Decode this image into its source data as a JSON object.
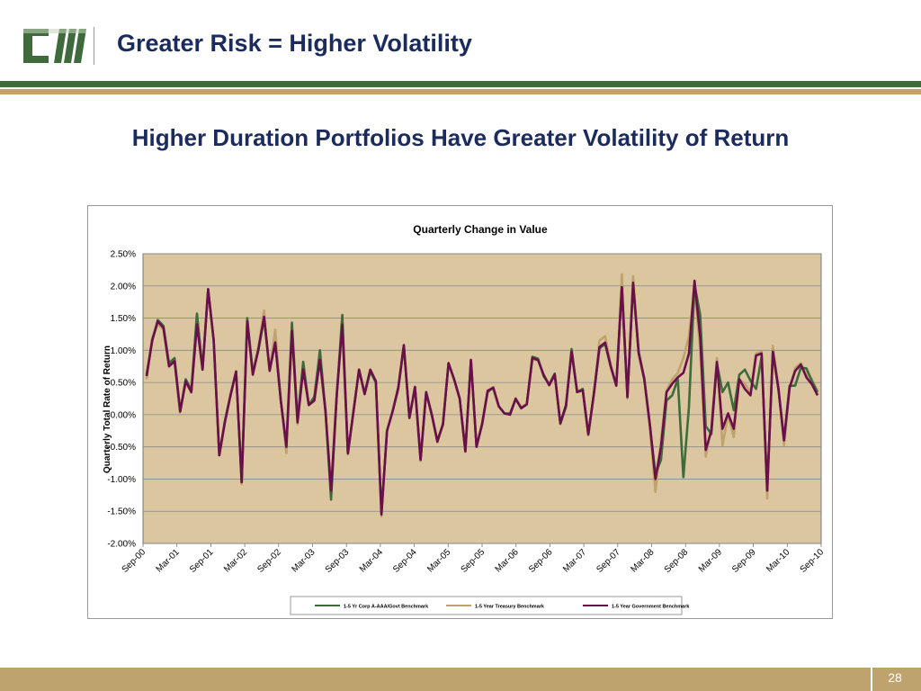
{
  "header": {
    "logo_text": "CM",
    "title": "Greater Risk = Higher Volatility"
  },
  "subtitle": "Higher Duration Portfolios Have Greater Volatility of Return",
  "footer": {
    "page_number": "28"
  },
  "chart_data": {
    "type": "line",
    "title": "Quarterly Change in Value",
    "ylabel": "Quarterly Total Rate of Return",
    "xlabel": "",
    "ylim": [
      -2.0,
      2.5
    ],
    "yticks": [
      "2.50%",
      "2.00%",
      "1.50%",
      "1.00%",
      "0.50%",
      "0.00%",
      "-0.50%",
      "-1.00%",
      "-1.50%",
      "-2.00%"
    ],
    "x_tick_labels": [
      "Sep-00",
      "Mar-01",
      "Sep-01",
      "Mar-02",
      "Sep-02",
      "Mar-03",
      "Sep-03",
      "Mar-04",
      "Sep-04",
      "Mar-05",
      "Sep-05",
      "Mar-06",
      "Sep-06",
      "Mar-07",
      "Sep-07",
      "Mar-08",
      "Sep-08",
      "Mar-09",
      "Sep-09",
      "Mar-10",
      "Sep-10"
    ],
    "grid": true,
    "legend_position": "bottom",
    "plot_background": "#dcc6a0",
    "series": [
      {
        "name": "1-5 Yr Corp A-AAA/Govt Benchmark",
        "color": "#3d6b3a",
        "values": [
          0.62,
          1.15,
          1.47,
          1.38,
          0.8,
          0.88,
          0.05,
          0.55,
          0.38,
          1.57,
          0.7,
          1.95,
          1.15,
          -0.63,
          -0.1,
          0.3,
          0.67,
          -1.05,
          1.5,
          0.64,
          1.0,
          1.49,
          0.7,
          1.12,
          0.22,
          -0.48,
          1.43,
          -0.09,
          0.82,
          0.15,
          0.28,
          1.0,
          0.05,
          -1.32,
          0.3,
          1.55,
          -0.6,
          0.05,
          0.7,
          0.32,
          0.67,
          0.5,
          -1.52,
          -0.25,
          0.05,
          0.4,
          1.07,
          -0.05,
          0.43,
          -0.7,
          0.35,
          0.0,
          -0.4,
          -0.15,
          0.8,
          0.55,
          0.25,
          -0.56,
          0.85,
          -0.49,
          -0.15,
          0.35,
          0.42,
          0.13,
          0.02,
          0.02,
          0.24,
          0.1,
          0.16,
          0.9,
          0.87,
          0.6,
          0.47,
          0.64,
          -0.14,
          0.12,
          1.02,
          0.35,
          0.4,
          -0.31,
          0.33,
          1.03,
          1.1,
          0.75,
          0.46,
          1.98,
          0.27,
          2.02,
          0.97,
          0.57,
          -0.15,
          -0.93,
          -0.7,
          0.22,
          0.3,
          0.55,
          -0.97,
          0.12,
          2.02,
          1.55,
          -0.18,
          -0.3,
          0.8,
          0.35,
          0.5,
          0.07,
          0.62,
          0.7,
          0.53,
          0.4,
          0.9,
          -1.17,
          0.98,
          0.4,
          -0.38,
          0.45,
          0.45,
          0.73,
          0.72,
          0.52,
          0.35
        ]
      },
      {
        "name": "1-5 Year Treasury Benchmark",
        "color": "#bfa36d",
        "values": [
          0.55,
          1.2,
          1.4,
          1.32,
          0.78,
          0.82,
          0.03,
          0.5,
          0.34,
          1.42,
          0.72,
          1.92,
          1.18,
          -0.63,
          -0.12,
          0.33,
          0.67,
          -1.08,
          1.42,
          0.68,
          1.05,
          1.62,
          0.68,
          1.32,
          0.25,
          -0.6,
          1.3,
          -0.15,
          0.72,
          0.18,
          0.22,
          0.82,
          0.1,
          -1.15,
          0.35,
          1.4,
          -0.62,
          0.05,
          0.7,
          0.35,
          0.7,
          0.52,
          -1.58,
          -0.25,
          0.05,
          0.42,
          1.06,
          -0.05,
          0.4,
          -0.72,
          0.33,
          -0.02,
          -0.43,
          -0.13,
          0.8,
          0.53,
          0.25,
          -0.58,
          0.82,
          -0.5,
          -0.12,
          0.38,
          0.4,
          0.12,
          0.02,
          0.0,
          0.25,
          0.12,
          0.17,
          0.85,
          0.85,
          0.62,
          0.45,
          0.62,
          -0.15,
          0.15,
          1.0,
          0.35,
          0.38,
          -0.32,
          0.34,
          1.15,
          1.22,
          0.78,
          0.45,
          2.18,
          0.25,
          2.15,
          1.0,
          0.55,
          -0.2,
          -1.2,
          -0.4,
          0.38,
          0.55,
          0.65,
          0.88,
          1.22,
          1.98,
          1.0,
          -0.65,
          -0.2,
          0.88,
          -0.48,
          0.0,
          -0.35,
          0.55,
          0.48,
          0.35,
          0.95,
          0.98,
          -1.3,
          1.07,
          0.45,
          -0.48,
          0.4,
          0.73,
          0.8,
          0.63,
          0.55,
          0.35
        ]
      },
      {
        "name": "1-5 Year Government Benchmark",
        "color": "#6b0f4a",
        "values": [
          0.6,
          1.15,
          1.45,
          1.35,
          0.75,
          0.83,
          0.05,
          0.52,
          0.35,
          1.4,
          0.7,
          1.95,
          1.15,
          -0.63,
          -0.12,
          0.3,
          0.67,
          -1.05,
          1.45,
          0.62,
          1.02,
          1.52,
          0.68,
          1.12,
          0.22,
          -0.5,
          1.3,
          -0.12,
          0.7,
          0.15,
          0.22,
          0.85,
          0.05,
          -1.18,
          0.3,
          1.4,
          -0.6,
          0.05,
          0.7,
          0.32,
          0.7,
          0.52,
          -1.55,
          -0.25,
          0.05,
          0.42,
          1.08,
          -0.05,
          0.43,
          -0.7,
          0.35,
          0.0,
          -0.42,
          -0.15,
          0.8,
          0.55,
          0.25,
          -0.57,
          0.85,
          -0.5,
          -0.15,
          0.37,
          0.42,
          0.13,
          0.02,
          0.0,
          0.25,
          0.1,
          0.16,
          0.88,
          0.85,
          0.62,
          0.46,
          0.62,
          -0.13,
          0.15,
          0.98,
          0.35,
          0.38,
          -0.3,
          0.32,
          1.05,
          1.12,
          0.75,
          0.45,
          1.98,
          0.28,
          2.05,
          0.95,
          0.55,
          -0.15,
          -1.0,
          -0.5,
          0.35,
          0.48,
          0.58,
          0.65,
          0.95,
          2.08,
          1.2,
          -0.55,
          -0.25,
          0.82,
          -0.22,
          0.02,
          -0.22,
          0.55,
          0.4,
          0.3,
          0.92,
          0.95,
          -1.18,
          0.98,
          0.4,
          -0.4,
          0.42,
          0.68,
          0.78,
          0.58,
          0.47,
          0.3
        ]
      }
    ]
  }
}
